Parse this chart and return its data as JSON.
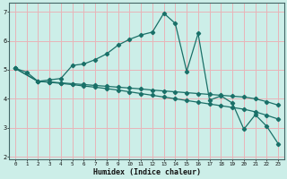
{
  "xlabel": "Humidex (Indice chaleur)",
  "bg_color": "#cceee8",
  "line_color": "#1a7068",
  "grid_color": "#e8b4b8",
  "xlim_min": -0.5,
  "xlim_max": 23.5,
  "ylim_min": 1.9,
  "ylim_max": 7.3,
  "yticks": [
    2,
    3,
    4,
    5,
    6,
    7
  ],
  "xticks": [
    0,
    1,
    2,
    3,
    4,
    5,
    6,
    7,
    8,
    9,
    10,
    11,
    12,
    13,
    14,
    15,
    16,
    17,
    18,
    19,
    20,
    21,
    22,
    23
  ],
  "line1_x": [
    0,
    1,
    2,
    3,
    4,
    5,
    6,
    7,
    8,
    9,
    10,
    11,
    12,
    13,
    14,
    15,
    16,
    17,
    18,
    19,
    20,
    21,
    22,
    23
  ],
  "line1_y": [
    5.05,
    4.92,
    4.6,
    4.65,
    4.7,
    5.15,
    5.2,
    5.35,
    5.55,
    5.85,
    6.05,
    6.2,
    6.3,
    6.95,
    6.6,
    4.95,
    6.25,
    3.95,
    4.1,
    3.85,
    2.95,
    3.45,
    3.05,
    2.45
  ],
  "line2_x": [
    0,
    2,
    3,
    4,
    5,
    6,
    7,
    8,
    9,
    10,
    11,
    12,
    13,
    14,
    15,
    16,
    17,
    18,
    19,
    20,
    21,
    22,
    23
  ],
  "line2_y": [
    5.05,
    4.6,
    4.58,
    4.55,
    4.52,
    4.49,
    4.46,
    4.43,
    4.4,
    4.37,
    4.34,
    4.3,
    4.27,
    4.24,
    4.21,
    4.18,
    4.15,
    4.12,
    4.09,
    4.06,
    4.0,
    3.9,
    3.78
  ],
  "line3_x": [
    0,
    2,
    3,
    4,
    5,
    6,
    7,
    8,
    9,
    10,
    11,
    12,
    13,
    14,
    15,
    16,
    17,
    18,
    19,
    20,
    21,
    22,
    23
  ],
  "line3_y": [
    5.05,
    4.6,
    4.57,
    4.53,
    4.49,
    4.44,
    4.4,
    4.35,
    4.3,
    4.24,
    4.18,
    4.12,
    4.06,
    4.0,
    3.94,
    3.88,
    3.82,
    3.76,
    3.7,
    3.64,
    3.55,
    3.43,
    3.3
  ]
}
